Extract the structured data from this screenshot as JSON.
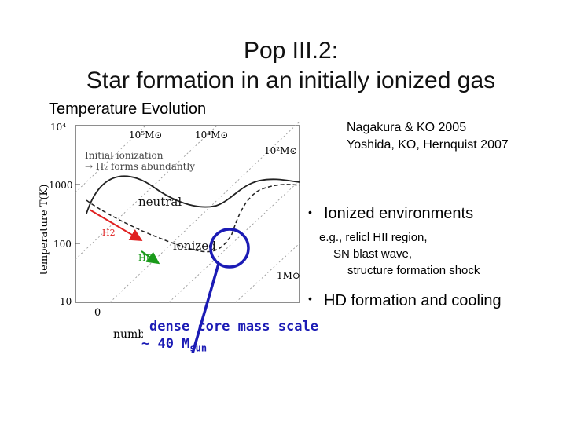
{
  "slide": {
    "title_line1": "Pop III.2:",
    "title_line2": "Star formation in an initially ionized gas",
    "subtitle": "Temperature Evolution",
    "references": [
      "Nagakura & KO 2005",
      "Yoshida, KO, Hernquist 2007"
    ],
    "bullet1": "Ionized environments",
    "bullet1_sub": [
      "e.g., relicl HII region,",
      "SN blast wave,",
      "structure formation shock"
    ],
    "bullet2": "HD formation and cooling",
    "mass_line1": "dense core mass scale",
    "mass_line2_prefix": "~ 40 M",
    "mass_line2_sub": "sun",
    "colors": {
      "annotation_blue": "#1b1bb5",
      "h2_arrow": "#e02020",
      "hd_arrow": "#1a9a1a",
      "text_dark": "#111111"
    }
  },
  "chart_data": {
    "type": "line",
    "ylabel": "temperature T(K)",
    "xlabel": "numb",
    "y_scale": "log",
    "y_ticks": [
      "10⁴",
      "1000",
      "100",
      "10"
    ],
    "x_ticks": [
      "0"
    ],
    "mass_labels": [
      "10⁵M⊙",
      "10⁴M⊙",
      "10²M⊙",
      "1M⊙"
    ],
    "series": [
      {
        "style": "solid",
        "label": "neutral"
      },
      {
        "style": "dashed",
        "label": "ionized"
      }
    ],
    "annotations": {
      "initial_ionization": "Initial ionization",
      "h2_forms": "→ H₂ forms abundantly",
      "h2": "H2",
      "hd": "HD"
    }
  }
}
